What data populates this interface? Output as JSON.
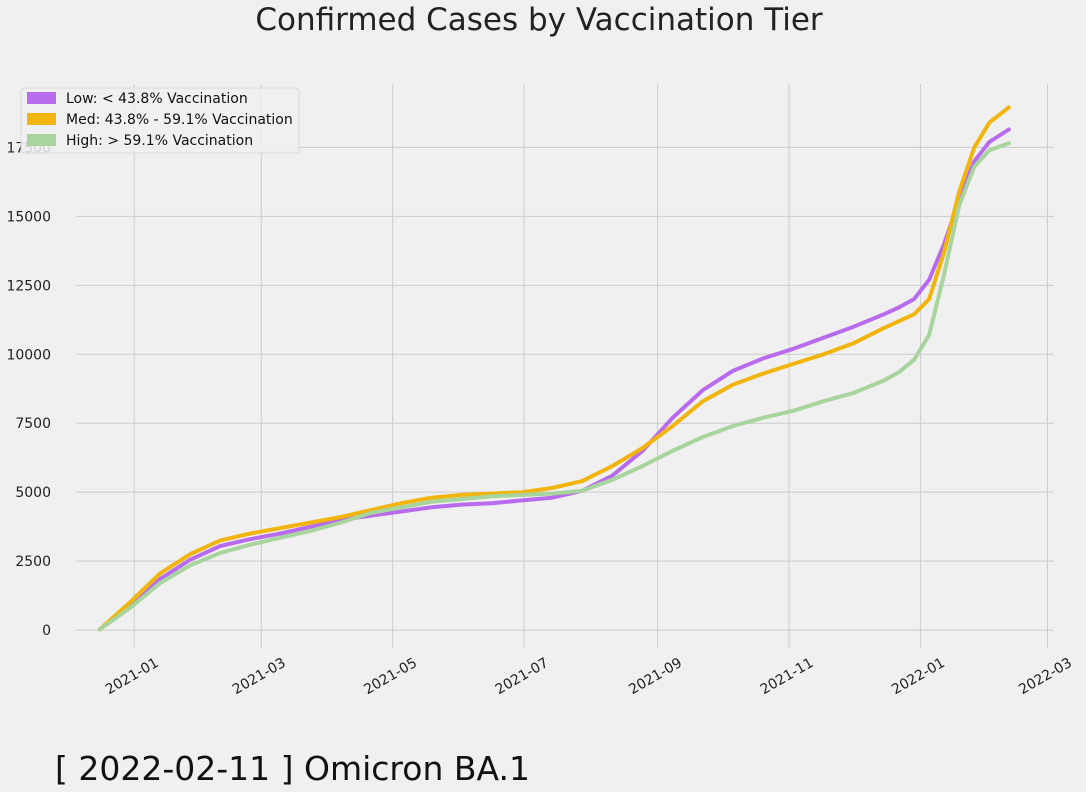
{
  "chart_data": {
    "type": "line",
    "title": "Confirmed Cases by Vaccination Tier",
    "xlabel": "",
    "ylabel": "",
    "x_axis": {
      "type": "date",
      "ticks": [
        "2021-01-01",
        "2021-03-01",
        "2021-05-01",
        "2021-07-01",
        "2021-09-01",
        "2021-11-01",
        "2022-01-01",
        "2022-03-01"
      ],
      "tick_labels": [
        "2021-01",
        "2021-03",
        "2021-05",
        "2021-07",
        "2021-09",
        "2021-11",
        "2022-01",
        "2022-03"
      ],
      "range": [
        "2020-12-05",
        "2022-03-04"
      ]
    },
    "y_axis": {
      "ticks": [
        0,
        2500,
        5000,
        7500,
        10000,
        12500,
        15000,
        17500
      ],
      "tick_labels": [
        "0",
        "2500",
        "5000",
        "7500",
        "10000",
        "12500",
        "15000",
        "17500"
      ],
      "range": [
        -650,
        19800
      ]
    },
    "grid": true,
    "legend_position": "top-left",
    "caption": "[ 2022-02-11 ] Omicron BA.1",
    "series": [
      {
        "name": "Low: < 43.8% Vaccination",
        "color": "#b86bec",
        "x": [
          "2020-12-16",
          "2020-12-30",
          "2021-01-13",
          "2021-01-27",
          "2021-02-10",
          "2021-02-24",
          "2021-03-10",
          "2021-03-24",
          "2021-04-07",
          "2021-04-21",
          "2021-05-05",
          "2021-05-19",
          "2021-06-02",
          "2021-06-16",
          "2021-06-30",
          "2021-07-14",
          "2021-07-28",
          "2021-08-11",
          "2021-08-25",
          "2021-09-08",
          "2021-09-22",
          "2021-10-06",
          "2021-10-20",
          "2021-11-03",
          "2021-11-17",
          "2021-12-01",
          "2021-12-15",
          "2021-12-22",
          "2021-12-29",
          "2022-01-05",
          "2022-01-12",
          "2022-01-19",
          "2022-01-26",
          "2022-02-02",
          "2022-02-11"
        ],
        "values": [
          20,
          900,
          1850,
          2550,
          3050,
          3300,
          3500,
          3750,
          4000,
          4150,
          4300,
          4450,
          4550,
          4600,
          4700,
          4800,
          5050,
          5600,
          6500,
          7700,
          8700,
          9400,
          9850,
          10200,
          10600,
          11000,
          11450,
          11700,
          12000,
          12700,
          14000,
          15600,
          17000,
          17700,
          18150
        ]
      },
      {
        "name": "Med: 43.8% - 59.1% Vaccination",
        "color": "#f2b50e",
        "x": [
          "2020-12-16",
          "2020-12-30",
          "2021-01-13",
          "2021-01-27",
          "2021-02-10",
          "2021-02-24",
          "2021-03-10",
          "2021-03-24",
          "2021-04-07",
          "2021-04-21",
          "2021-05-05",
          "2021-05-19",
          "2021-06-02",
          "2021-06-16",
          "2021-06-30",
          "2021-07-14",
          "2021-07-28",
          "2021-08-11",
          "2021-08-25",
          "2021-09-08",
          "2021-09-22",
          "2021-10-06",
          "2021-10-20",
          "2021-11-03",
          "2021-11-17",
          "2021-12-01",
          "2021-12-15",
          "2021-12-22",
          "2021-12-29",
          "2022-01-05",
          "2022-01-12",
          "2022-01-19",
          "2022-01-26",
          "2022-02-02",
          "2022-02-11"
        ],
        "values": [
          20,
          1000,
          2050,
          2750,
          3250,
          3500,
          3700,
          3900,
          4100,
          4350,
          4600,
          4800,
          4900,
          4950,
          5000,
          5150,
          5400,
          5950,
          6600,
          7400,
          8300,
          8900,
          9300,
          9650,
          10000,
          10400,
          10950,
          11200,
          11450,
          12000,
          13700,
          15900,
          17500,
          18400,
          18950
        ]
      },
      {
        "name": "High: > 59.1%  Vaccination",
        "color": "#a8d49e",
        "x": [
          "2020-12-16",
          "2020-12-30",
          "2021-01-13",
          "2021-01-27",
          "2021-02-10",
          "2021-02-24",
          "2021-03-10",
          "2021-03-24",
          "2021-04-07",
          "2021-04-21",
          "2021-05-05",
          "2021-05-19",
          "2021-06-02",
          "2021-06-16",
          "2021-06-30",
          "2021-07-14",
          "2021-07-28",
          "2021-08-11",
          "2021-08-25",
          "2021-09-08",
          "2021-09-22",
          "2021-10-06",
          "2021-10-20",
          "2021-11-03",
          "2021-11-17",
          "2021-12-01",
          "2021-12-15",
          "2021-12-22",
          "2021-12-29",
          "2022-01-05",
          "2022-01-12",
          "2022-01-19",
          "2022-01-26",
          "2022-02-02",
          "2022-02-11"
        ],
        "values": [
          20,
          800,
          1700,
          2350,
          2800,
          3100,
          3350,
          3600,
          3900,
          4250,
          4450,
          4650,
          4750,
          4850,
          4900,
          4950,
          5050,
          5450,
          5950,
          6500,
          7000,
          7400,
          7700,
          7950,
          8300,
          8600,
          9050,
          9350,
          9800,
          10700,
          12900,
          15400,
          16800,
          17400,
          17650
        ]
      }
    ]
  }
}
